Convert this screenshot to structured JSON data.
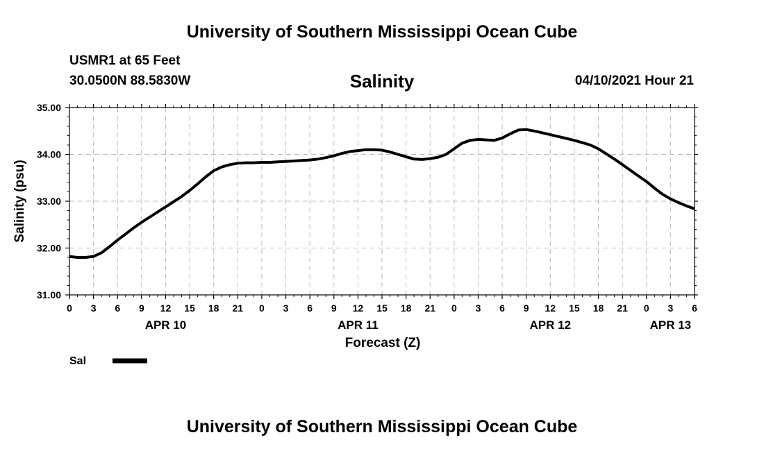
{
  "header": {
    "top_title": "University of Southern Mississippi Ocean Cube",
    "station": "USMR1 at 65 Feet",
    "coords": "30.0500N  88.5830W",
    "forecast_time": "04/10/2021 Hour 21"
  },
  "footer": {
    "bottom_title": "University of Southern Mississippi Ocean Cube"
  },
  "chart_data": {
    "type": "line",
    "title": "Salinity",
    "xlabel": "Forecast (Z)",
    "ylabel": "Salinity (psu)",
    "ylim": [
      31.0,
      35.0
    ],
    "xlim": [
      0,
      78
    ],
    "y_ticks": [
      "31.00",
      "32.00",
      "33.00",
      "34.00",
      "35.00"
    ],
    "x_tick_labels": [
      "0",
      "3",
      "6",
      "9",
      "12",
      "15",
      "18",
      "21",
      "0",
      "3",
      "6",
      "9",
      "12",
      "15",
      "18",
      "21",
      "0",
      "3",
      "6",
      "9",
      "12",
      "15",
      "18",
      "21",
      "0",
      "3",
      "6"
    ],
    "day_labels": [
      {
        "label": "APR 10",
        "hour": 12
      },
      {
        "label": "APR 11",
        "hour": 36
      },
      {
        "label": "APR 12",
        "hour": 60
      },
      {
        "label": "APR 13",
        "hour": 75
      }
    ],
    "grid": true,
    "legend_position": "bottom-left",
    "colors": {
      "line": "#000000",
      "grid": "#bbbbbb"
    },
    "series": [
      {
        "name": "Sal",
        "x": [
          0,
          1,
          2,
          3,
          4,
          5,
          6,
          7,
          8,
          9,
          10,
          11,
          12,
          13,
          14,
          15,
          16,
          17,
          18,
          19,
          20,
          21,
          22,
          23,
          24,
          25,
          26,
          27,
          28,
          29,
          30,
          31,
          32,
          33,
          34,
          35,
          36,
          37,
          38,
          39,
          40,
          41,
          42,
          43,
          44,
          45,
          46,
          47,
          48,
          49,
          50,
          51,
          52,
          53,
          54,
          55,
          56,
          57,
          58,
          59,
          60,
          61,
          62,
          63,
          64,
          65,
          66,
          67,
          68,
          69,
          70,
          71,
          72,
          73,
          74,
          75,
          76,
          77,
          78
        ],
        "values": [
          31.82,
          31.8,
          31.8,
          31.82,
          31.9,
          32.03,
          32.17,
          32.3,
          32.43,
          32.55,
          32.66,
          32.77,
          32.88,
          32.99,
          33.1,
          33.23,
          33.37,
          33.52,
          33.65,
          33.73,
          33.78,
          33.81,
          33.82,
          33.82,
          33.83,
          33.83,
          33.84,
          33.85,
          33.86,
          33.87,
          33.88,
          33.9,
          33.93,
          33.97,
          34.02,
          34.06,
          34.08,
          34.1,
          34.1,
          34.09,
          34.05,
          34.0,
          33.95,
          33.9,
          33.89,
          33.91,
          33.94,
          34.0,
          34.12,
          34.24,
          34.3,
          34.32,
          34.31,
          34.3,
          34.35,
          34.44,
          34.52,
          34.53,
          34.5,
          34.46,
          34.42,
          34.38,
          34.34,
          34.3,
          34.25,
          34.2,
          34.12,
          34.01,
          33.9,
          33.78,
          33.66,
          33.54,
          33.42,
          33.28,
          33.15,
          33.05,
          32.97,
          32.9,
          32.84
        ]
      }
    ]
  }
}
